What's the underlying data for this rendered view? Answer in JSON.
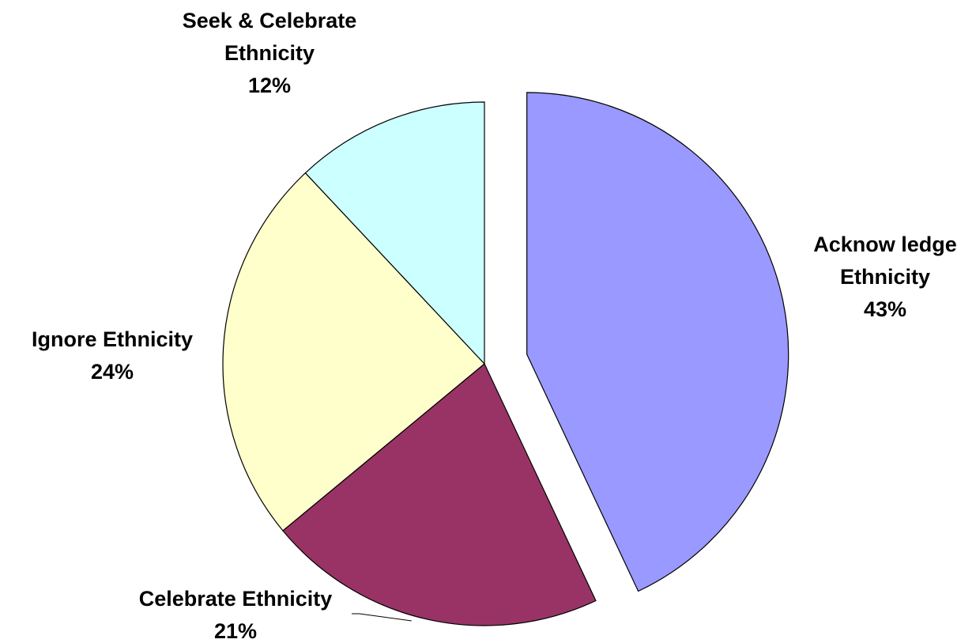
{
  "chart_data": {
    "type": "pie",
    "title": "",
    "slices": [
      {
        "label": [
          "Acknow ledge",
          "Ethnicity"
        ],
        "value": 43,
        "pct_label": "43%",
        "color": "#9999FF",
        "exploded": true
      },
      {
        "label": [
          "Celebrate Ethnicity"
        ],
        "value": 21,
        "pct_label": "21%",
        "color": "#993366",
        "exploded": false
      },
      {
        "label": [
          "Ignore Ethnicity"
        ],
        "value": 24,
        "pct_label": "24%",
        "color": "#FFFFCC",
        "exploded": false
      },
      {
        "label": [
          "Seek & Celebrate",
          "Ethnicity"
        ],
        "value": 12,
        "pct_label": "12%",
        "color": "#CCFFFF",
        "exploded": false
      }
    ],
    "legend": "none",
    "start_angle": "12 o'clock",
    "direction": "clockwise"
  }
}
